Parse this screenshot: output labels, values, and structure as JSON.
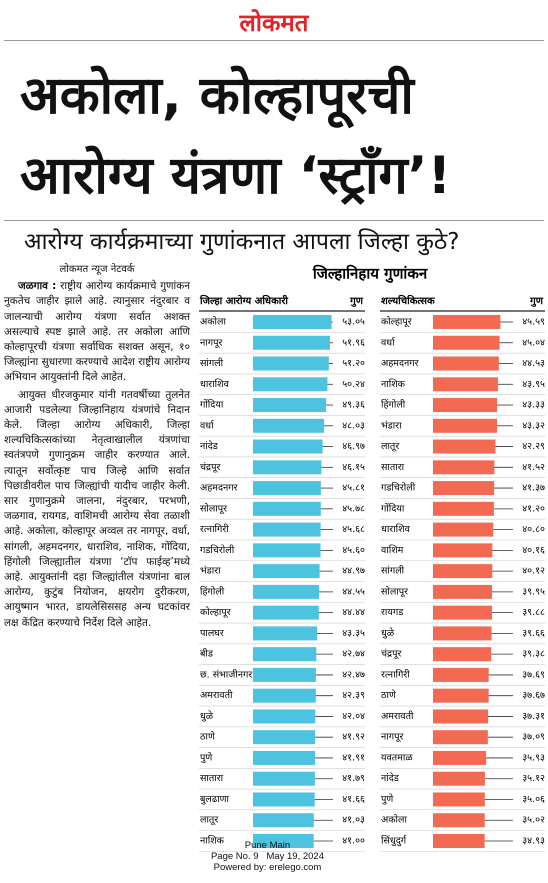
{
  "masthead": "लोकमत",
  "headline": [
    "अकोला, कोल्हापूरची",
    "आरोग्य यंत्रणा ‘स्ट्राँग’!"
  ],
  "subheadline": "आरोग्य कार्यक्रमाच्या गुणांकनात आपला जिल्हा कुठे?",
  "article": {
    "byline": "लोकमत न्यूज नेटवर्क",
    "dateline": "जळगाव :",
    "paragraphs": [
      "राष्ट्रीय आरोग्य कार्यक्रमाचे गुणांकन नुकतेच जाहीर झाले आहे. त्यानुसार नंदुरबार व जालन्याची आरोग्य यंत्रणा सर्वात अशक्त असल्याचे स्पष्ट झाले आहे. तर अकोला आणि कोल्हापूरची यंत्रणा सर्वाधिक सशक्त असून, १० जिल्ह्यांना सुधारणा करण्याचे आदेश राष्ट्रीय आरोग्य अभियान आयुक्तांनी दिले आहेत.",
      "आयुक्त धीरजकुमार यांनी गतवर्षीच्या तुलनेत आजारी पडलेल्या जिल्हानिहाय यंत्रणांचे निदान केले. जिल्हा आरोग्य अधिकारी, जिल्हा शल्यचिकित्सकांच्या नेतृत्वाखालील यंत्रणांचा स्वतंत्रपणे गुणानुक्रम जाहीर करण्यात आले. त्यातून सर्वोत्कृष्ट पाच जिल्हे आणि सर्वात पिछाडीवरील पाच जिल्ह्यांची यादीच जाहीर केली. सार गुणानुक्रमे जालना, नंदुरबार, परभणी, जळगाव, रायगड, वाशिमची आरोग्य सेवा तळाशी आहे. अकोला, कोल्हापूर अव्वल तर नागपूर, वर्धा, सांगली, अहमदनगर, धाराशिव, नाशिक, गोंदिया, हिंगोली जिल्ह्यातील यंत्रणा ‘टॉप फाईव्ह’मध्ये आहे. आयुक्तांनी दहा जिल्ह्यांतील यंत्रणांना बाल आरोग्य, कुटुंब नियोजन, क्षयरोग दुरीकरण, आयुष्मान भारत, डायलेसिससह अन्य घटकांवर लक्ष केंद्रित करण्याचे निर्देश दिले आहेत."
    ]
  },
  "charts_heading": "जिल्हानिहाय गुणांकन",
  "chart_data": [
    {
      "type": "bar",
      "title": "जिल्हा आरोग्य अधिकारी",
      "value_header": "गुण",
      "color": "#4ec3df",
      "xlim": [
        0,
        54
      ],
      "categories": [
        "अकोला",
        "नागपूर",
        "सांगली",
        "धाराशिव",
        "गोंदिया",
        "वर्धा",
        "नांदेड",
        "चंद्रपूर",
        "अहमदनगर",
        "सोलापूर",
        "रत्नागिरी",
        "गडचिरोली",
        "भंडारा",
        "हिंगोली",
        "कोल्हापूर",
        "पालघर",
        "बीड",
        "छ. संभाजीनगर",
        "अमरावती",
        "धुळे",
        "ठाणे",
        "पुणे",
        "सातारा",
        "बुलढाणा",
        "लातूर",
        "नाशिक"
      ],
      "values": [
        53.05,
        51.96,
        51.2,
        50.24,
        49.36,
        48.03,
        46.97,
        46.15,
        45.81,
        45.78,
        45.68,
        45.6,
        44.97,
        44.55,
        44.44,
        43.35,
        42.74,
        42.47,
        42.39,
        42.04,
        41.92,
        41.91,
        41.79,
        41.66,
        41.03,
        41.0
      ],
      "value_labels": [
        "५३.०५",
        "५१.९६",
        "५१.२०",
        "५०.२४",
        "४९.३६",
        "४८.०३",
        "४६.९७",
        "४६.१५",
        "४५.८१",
        "४५.७८",
        "४५.६८",
        "४५.६०",
        "४४.९७",
        "४४.५५",
        "४४.४४",
        "४३.३५",
        "४२.७४",
        "४२.४७",
        "४२.३९",
        "४२.०४",
        "४१.९२",
        "४१.९१",
        "४१.७९",
        "४१.६६",
        "४१.०३",
        "४१.००"
      ]
    },
    {
      "type": "bar",
      "title": "शल्यचिकित्सक",
      "value_header": "गुण",
      "color": "#f26a52",
      "xlim": [
        0,
        46
      ],
      "categories": [
        "कोल्हापूर",
        "वर्धा",
        "अहमदनगर",
        "नाशिक",
        "हिंगोली",
        "भंडारा",
        "लातूर",
        "सातारा",
        "गडचिरोली",
        "गोंदिया",
        "धाराशिव",
        "वाशिम",
        "सांगली",
        "सोलापूर",
        "रायगड",
        "धुळे",
        "चंद्रपूर",
        "रत्नागिरी",
        "ठाणे",
        "अमरावती",
        "नागपूर",
        "यवतमाळ",
        "नांदेड",
        "पुणे",
        "अकोला",
        "सिंधुदुर्ग"
      ],
      "values": [
        45.59,
        45.04,
        44.53,
        43.95,
        43.33,
        43.32,
        42.29,
        41.52,
        41.37,
        41.2,
        40.8,
        40.16,
        40.12,
        39.95,
        39.88,
        39.66,
        39.38,
        37.69,
        37.67,
        37.31,
        37.09,
        35.93,
        35.12,
        35.06,
        35.02,
        34.93
      ],
      "value_labels": [
        "४५.५९",
        "४५.०४",
        "४४.५३",
        "४३.९५",
        "४३.३३",
        "४३.३२",
        "४२.२९",
        "४१.५२",
        "४१.३७",
        "४१.२०",
        "४०.८०",
        "४०.१६",
        "४०.१२",
        "३९.९५",
        "३९.८८",
        "३९.६६",
        "३९.३८",
        "३७.६९",
        "३७.६७",
        "३७.३१",
        "३७.०९",
        "३५.९३",
        "३५.१२",
        "३५.०६",
        "३५.०२",
        "३४.९३"
      ]
    }
  ],
  "footer": {
    "edition": "Pune Main",
    "page": "Page No. 9",
    "date": "May 19, 2024",
    "powered": "Powered by: erelego.com"
  }
}
